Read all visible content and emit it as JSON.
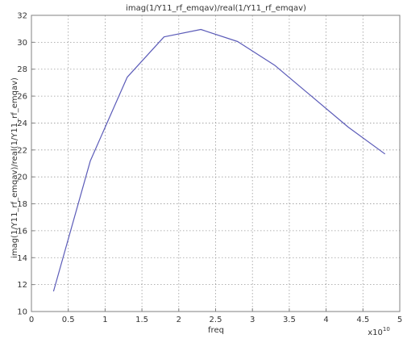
{
  "chart_data": {
    "type": "line",
    "title": "imag(1/Y11_rf_emqav)/real(1/Y11_rf_emqav)",
    "xlabel": "freq",
    "ylabel": "imag(1/Y11_rf_emqav)/real(1/Y11_rf_emqav)",
    "x_scale_label": "x10",
    "x_scale_exponent": "10",
    "xlim": [
      0,
      5
    ],
    "ylim": [
      10,
      32
    ],
    "x_ticks": [
      "0",
      "0.5",
      "1",
      "1.5",
      "2",
      "2.5",
      "3",
      "3.5",
      "4",
      "4.5",
      "5"
    ],
    "y_ticks": [
      "10",
      "12",
      "14",
      "16",
      "18",
      "20",
      "22",
      "24",
      "26",
      "28",
      "30",
      "32"
    ],
    "grid": true,
    "series": [
      {
        "x": [
          0.3,
          0.8,
          1.3,
          1.8,
          2.3,
          2.8,
          3.3,
          3.8,
          4.3,
          4.8
        ],
        "values": [
          11.5,
          21.2,
          27.4,
          30.4,
          30.95,
          30.05,
          28.3,
          26.0,
          23.7,
          21.7
        ]
      }
    ],
    "colors": {
      "line": "#5b5bb8",
      "grid": "#9a9a9a",
      "axis": "#808080"
    }
  }
}
